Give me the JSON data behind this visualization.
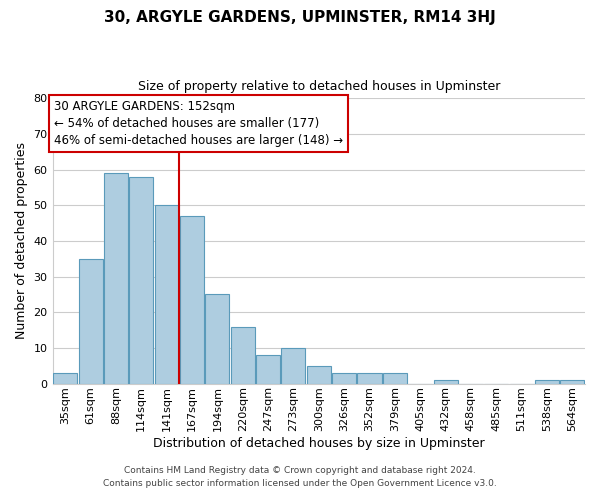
{
  "title": "30, ARGYLE GARDENS, UPMINSTER, RM14 3HJ",
  "subtitle": "Size of property relative to detached houses in Upminster",
  "xlabel": "Distribution of detached houses by size in Upminster",
  "ylabel": "Number of detached properties",
  "categories": [
    "35sqm",
    "61sqm",
    "88sqm",
    "114sqm",
    "141sqm",
    "167sqm",
    "194sqm",
    "220sqm",
    "247sqm",
    "273sqm",
    "300sqm",
    "326sqm",
    "352sqm",
    "379sqm",
    "405sqm",
    "432sqm",
    "458sqm",
    "485sqm",
    "511sqm",
    "538sqm",
    "564sqm"
  ],
  "values": [
    3,
    35,
    59,
    58,
    50,
    47,
    25,
    16,
    8,
    10,
    5,
    3,
    3,
    3,
    0,
    1,
    0,
    0,
    0,
    1,
    1
  ],
  "bar_color": "#aecde0",
  "bar_edge_color": "#5a9aba",
  "annotation_text_line1": "30 ARGYLE GARDENS: 152sqm",
  "annotation_text_line2": "← 54% of detached houses are smaller (177)",
  "annotation_text_line3": "46% of semi-detached houses are larger (148) →",
  "annotation_box_color": "#ffffff",
  "annotation_box_edge_color": "#cc0000",
  "vline_color": "#cc0000",
  "ylim": [
    0,
    80
  ],
  "yticks": [
    0,
    10,
    20,
    30,
    40,
    50,
    60,
    70,
    80
  ],
  "footer_line1": "Contains HM Land Registry data © Crown copyright and database right 2024.",
  "footer_line2": "Contains public sector information licensed under the Open Government Licence v3.0.",
  "background_color": "#ffffff",
  "grid_color": "#cccccc",
  "title_fontsize": 11,
  "subtitle_fontsize": 9,
  "xlabel_fontsize": 9,
  "ylabel_fontsize": 9,
  "tick_fontsize": 8,
  "annotation_fontsize": 8.5,
  "footer_fontsize": 6.5
}
